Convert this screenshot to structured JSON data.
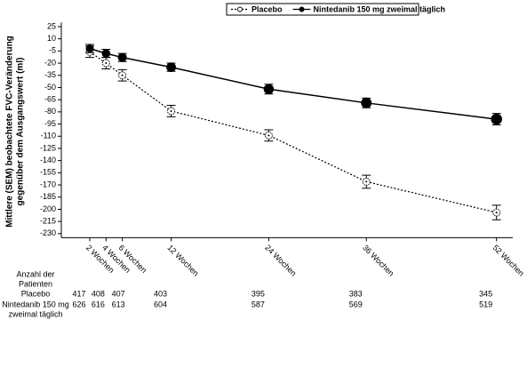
{
  "chart_data": {
    "type": "line",
    "y_label": [
      "Mittlere (SEM) beobachtete FVC-Veränderung",
      "gegenüber dem Ausgangswert (ml)"
    ],
    "x": [
      2,
      4,
      6,
      12,
      24,
      36,
      52
    ],
    "xlim": [
      -1.5,
      54
    ],
    "xticks": [
      {
        "value": 2,
        "label": "2 Wochen"
      },
      {
        "value": 4,
        "label": "4 Wochen"
      },
      {
        "value": 6,
        "label": "6 Wochen"
      },
      {
        "value": 12,
        "label": "12 Wochen"
      },
      {
        "value": 24,
        "label": "24 Wochen"
      },
      {
        "value": 36,
        "label": "36 Wochen"
      },
      {
        "value": 52,
        "label": "52 Wochen"
      }
    ],
    "ylim": [
      -235,
      30
    ],
    "yticks": [
      25,
      10,
      -5,
      -20,
      -35,
      -50,
      -65,
      -80,
      -95,
      -110,
      -125,
      -140,
      -155,
      -170,
      -185,
      -200,
      -215,
      -230
    ],
    "legend": "top",
    "series": [
      {
        "name": "Placebo",
        "color": "#000000",
        "dash": true,
        "values": [
          -6,
          -20,
          -35,
          -79,
          -109,
          -166,
          -204
        ],
        "errors": [
          7,
          7,
          7,
          7,
          7,
          8,
          9
        ]
      },
      {
        "name": "Nintedanib 150 mg zweimal täglich",
        "color": "#000000",
        "dash": false,
        "values": [
          -2,
          -8,
          -13,
          -25,
          -52,
          -69,
          -89
        ],
        "errors": [
          5,
          5,
          5,
          5,
          6,
          6,
          7
        ]
      }
    ]
  },
  "table": {
    "title": [
      "Anzahl der",
      "Patienten"
    ],
    "rows": [
      {
        "label": [
          "Placebo"
        ],
        "counts": [
          417,
          408,
          407,
          403,
          395,
          383,
          345
        ]
      },
      {
        "label": [
          "Nintedanib 150 mg",
          "zweimal täglich"
        ],
        "counts": [
          626,
          616,
          613,
          604,
          587,
          569,
          519
        ]
      }
    ]
  }
}
